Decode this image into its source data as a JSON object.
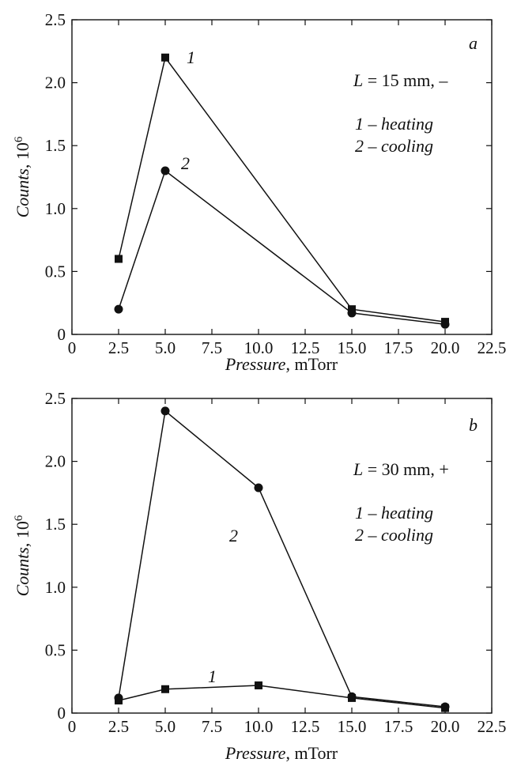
{
  "chart_data": [
    {
      "panel": "a",
      "type": "line",
      "xlabel_italic": "Pressure",
      "xlabel_unit": ", mTorr",
      "ylabel_italic": "Counts",
      "ylabel_unit": ", 10",
      "ylabel_exp": "6",
      "xlim": [
        0,
        22.5
      ],
      "ylim": [
        0,
        2.5
      ],
      "xticks": [
        "0",
        "2.5",
        "5.0",
        "7.5",
        "10.0",
        "12.5",
        "15.0",
        "17.5",
        "20.0",
        "22.5"
      ],
      "yticks": [
        "0",
        "0.5",
        "1.0",
        "1.5",
        "2.0",
        "2.5"
      ],
      "annotations": {
        "param_var": "L",
        "param_text": " = 15 mm, –",
        "legend_1": "1 – heating",
        "legend_2": "2 – cooling"
      },
      "series": [
        {
          "name": "1",
          "marker": "square",
          "x": [
            2.5,
            5.0,
            15.0,
            20.0
          ],
          "y": [
            0.6,
            2.2,
            0.2,
            0.1
          ]
        },
        {
          "name": "2",
          "marker": "circle",
          "x": [
            2.5,
            5.0,
            15.0,
            20.0
          ],
          "y": [
            0.2,
            1.3,
            0.17,
            0.08
          ]
        }
      ]
    },
    {
      "panel": "b",
      "type": "line",
      "xlabel_italic": "Pressure",
      "xlabel_unit": ", mTorr",
      "ylabel_italic": "Counts",
      "ylabel_unit": ", 10",
      "ylabel_exp": "6",
      "xlim": [
        0,
        22.5
      ],
      "ylim": [
        0,
        2.5
      ],
      "xticks": [
        "0",
        "2.5",
        "5.0",
        "7.5",
        "10.0",
        "12.5",
        "15.0",
        "17.5",
        "20.0",
        "22.5"
      ],
      "yticks": [
        "0",
        "0.5",
        "1.0",
        "1.5",
        "2.0",
        "2.5"
      ],
      "annotations": {
        "param_var": "L",
        "param_text": " = 30 mm, +",
        "legend_1": "1 – heating",
        "legend_2": "2 – cooling"
      },
      "series": [
        {
          "name": "1",
          "marker": "square",
          "x": [
            2.5,
            5.0,
            10.0,
            15.0,
            20.0
          ],
          "y": [
            0.1,
            0.19,
            0.22,
            0.12,
            0.04
          ]
        },
        {
          "name": "2",
          "marker": "circle",
          "x": [
            2.5,
            5.0,
            10.0,
            15.0,
            20.0
          ],
          "y": [
            0.12,
            2.4,
            1.79,
            0.13,
            0.05
          ]
        }
      ]
    }
  ]
}
